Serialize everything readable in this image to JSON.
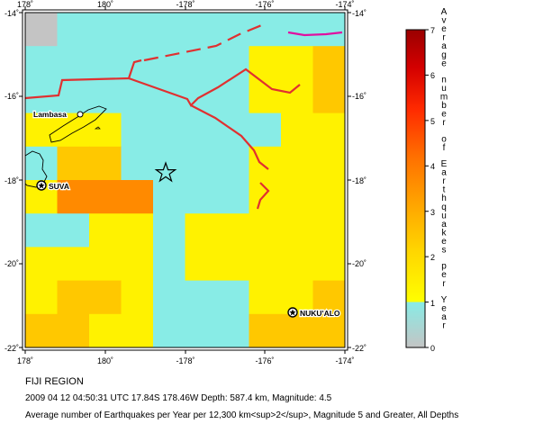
{
  "map": {
    "lon_ticks": [
      "178˚",
      "180˚",
      "-178˚",
      "-176˚",
      "-174˚"
    ],
    "lat_ticks": [
      "-14˚",
      "-16˚",
      "-18˚",
      "-20˚",
      "-22˚"
    ],
    "places": [
      {
        "label": "Lambasa",
        "marker": "open-circle"
      },
      {
        "label": "SUVA",
        "marker": "star-in-circle"
      },
      {
        "label": "NUKU'ALO",
        "marker": "star-in-circle"
      }
    ],
    "epicenter_marker": "star-icon",
    "grid": {
      "rows": 10,
      "cols": 10,
      "classes": [
        [
          0,
          1,
          1,
          1,
          1,
          1,
          1,
          1,
          1,
          1
        ],
        [
          1,
          1,
          1,
          1,
          1,
          1,
          1,
          2,
          2,
          3
        ],
        [
          1,
          1,
          1,
          1,
          1,
          1,
          1,
          2,
          2,
          3
        ],
        [
          2,
          2,
          2,
          1,
          1,
          1,
          1,
          1,
          2,
          2
        ],
        [
          1,
          3,
          3,
          1,
          1,
          1,
          1,
          2,
          2,
          2
        ],
        [
          2,
          4,
          4,
          4,
          1,
          1,
          1,
          2,
          2,
          2
        ],
        [
          1,
          1,
          2,
          2,
          1,
          2,
          2,
          2,
          2,
          2
        ],
        [
          2,
          2,
          2,
          2,
          1,
          2,
          2,
          2,
          2,
          2
        ],
        [
          2,
          3,
          3,
          2,
          1,
          1,
          1,
          2,
          2,
          3
        ],
        [
          3,
          3,
          2,
          2,
          1,
          1,
          1,
          3,
          3,
          3
        ]
      ],
      "colors": [
        "#c4c4c4",
        "#88ece6",
        "#fff200",
        "#ffc800",
        "#ff8a00"
      ]
    },
    "border_color": "#e03030",
    "trench_color": "#e0109a"
  },
  "legend": {
    "title": "Average number of Earthquakes per Year",
    "ticks": [
      "0",
      "1",
      "2",
      "3",
      "4",
      "5",
      "6",
      "7"
    ]
  },
  "footer": {
    "region": "FIJI REGION",
    "event": "2009 04 12 04:50:31 UTC 17.84S 178.46W Depth: 587.4 km, Magnitude: 4.5",
    "caption": "Average number of Earthquakes per Year per 12,300 km<sup>2</sup>, Magnitude 5 and Greater, All Depths"
  }
}
